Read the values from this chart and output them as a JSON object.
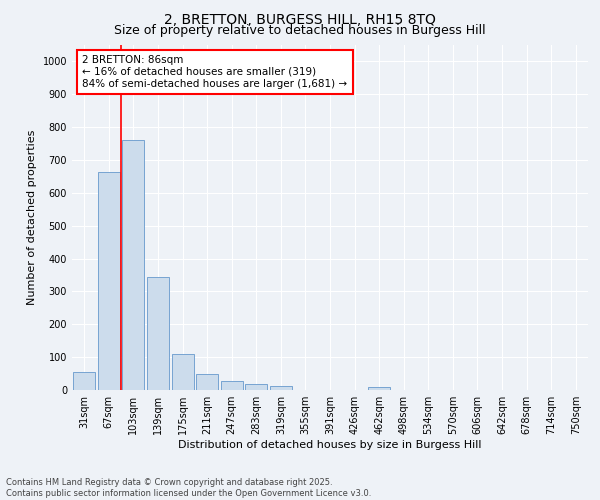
{
  "title": "2, BRETTON, BURGESS HILL, RH15 8TQ",
  "subtitle": "Size of property relative to detached houses in Burgess Hill",
  "xlabel": "Distribution of detached houses by size in Burgess Hill",
  "ylabel": "Number of detached properties",
  "footnote1": "Contains HM Land Registry data © Crown copyright and database right 2025.",
  "footnote2": "Contains public sector information licensed under the Open Government Licence v3.0.",
  "bin_labels": [
    "31sqm",
    "67sqm",
    "103sqm",
    "139sqm",
    "175sqm",
    "211sqm",
    "247sqm",
    "283sqm",
    "319sqm",
    "355sqm",
    "391sqm",
    "426sqm",
    "462sqm",
    "498sqm",
    "534sqm",
    "570sqm",
    "606sqm",
    "642sqm",
    "678sqm",
    "714sqm",
    "750sqm"
  ],
  "bar_values": [
    55,
    665,
    760,
    345,
    110,
    50,
    28,
    18,
    12,
    0,
    0,
    0,
    8,
    0,
    0,
    0,
    0,
    0,
    0,
    0,
    0
  ],
  "bar_color": "#ccdcec",
  "bar_edge_color": "#6699cc",
  "vline_x": 1.5,
  "vline_color": "red",
  "annotation_text": "2 BRETTON: 86sqm\n← 16% of detached houses are smaller (319)\n84% of semi-detached houses are larger (1,681) →",
  "annotation_box_color": "white",
  "annotation_box_edge": "red",
  "ylim": [
    0,
    1050
  ],
  "yticks": [
    0,
    100,
    200,
    300,
    400,
    500,
    600,
    700,
    800,
    900,
    1000
  ],
  "bg_color": "#eef2f7",
  "grid_color": "white",
  "title_fontsize": 10,
  "subtitle_fontsize": 9,
  "axis_label_fontsize": 8,
  "tick_fontsize": 7,
  "annotation_fontsize": 7.5
}
